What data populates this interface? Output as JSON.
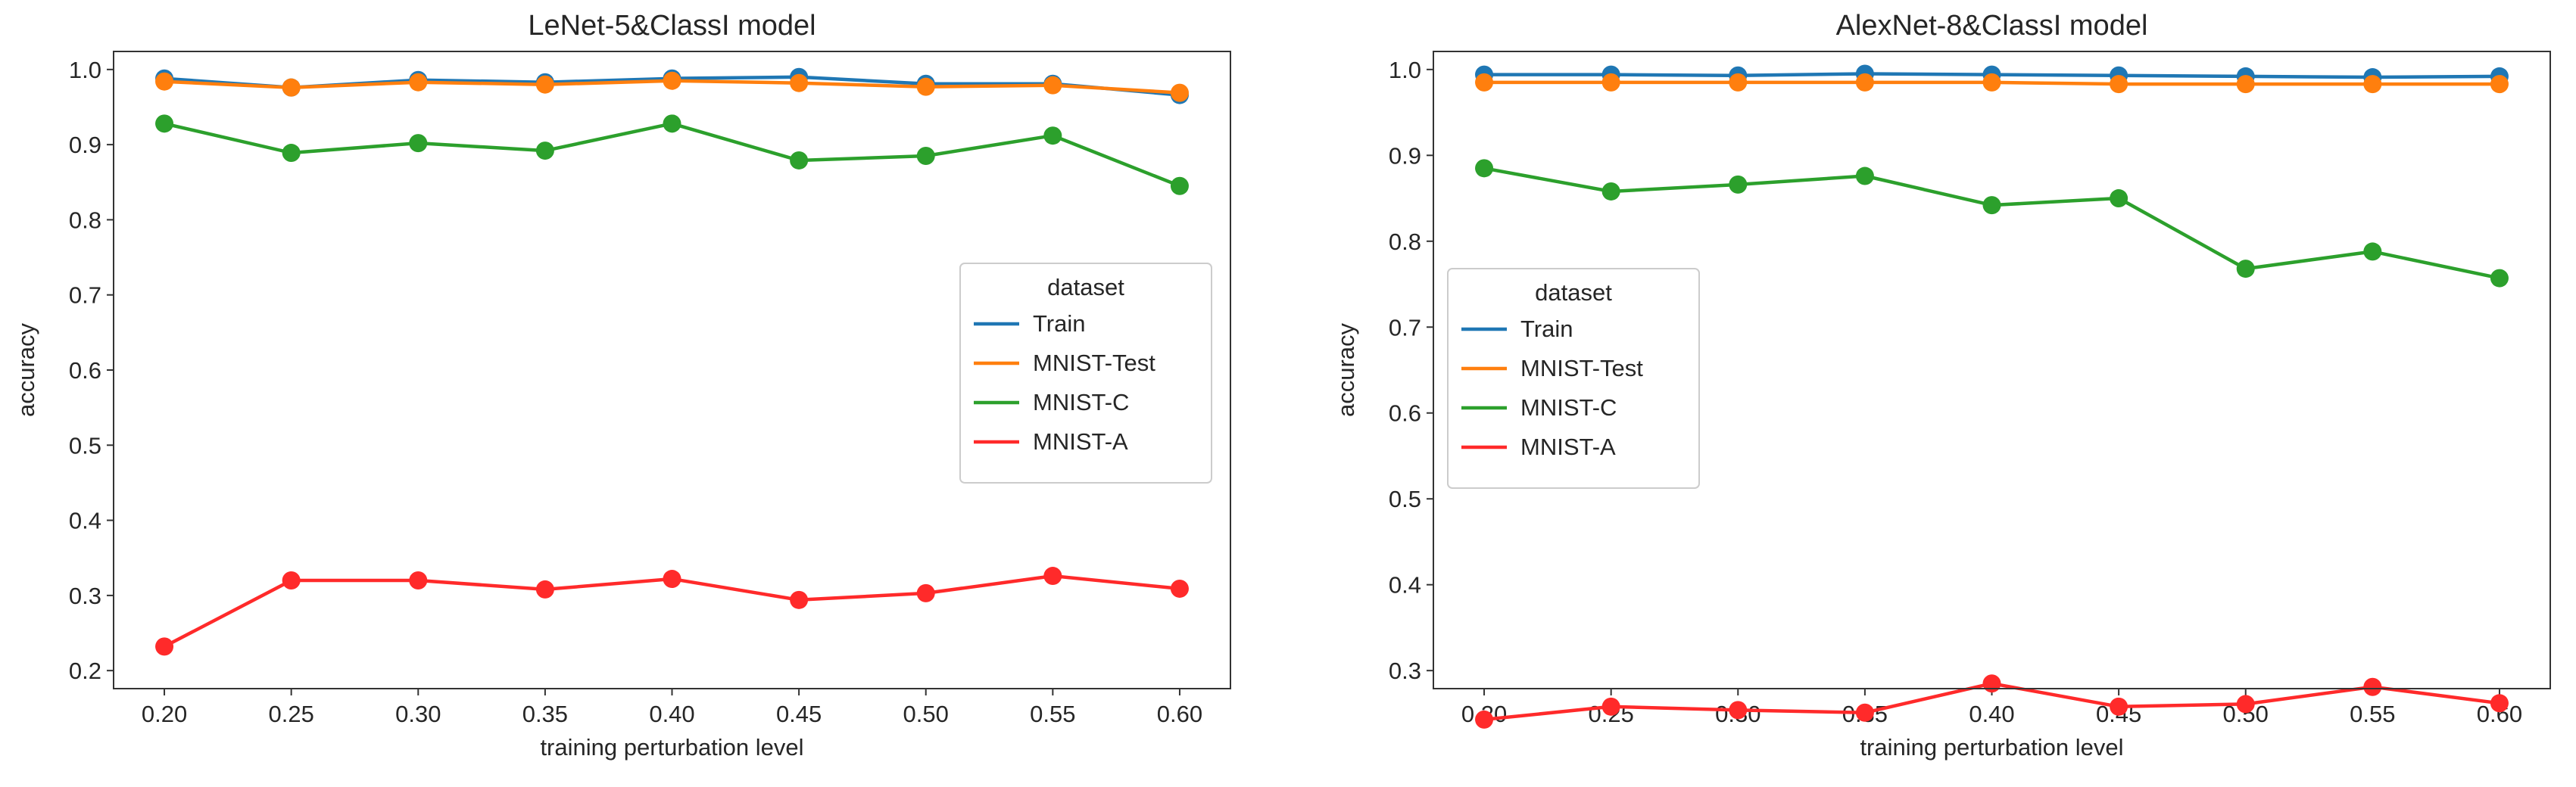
{
  "chart_data": [
    {
      "type": "line",
      "title": "LeNet-5&ClassI model",
      "xlabel": "training perturbation level",
      "ylabel": "accuracy",
      "x": [
        0.2,
        0.25,
        0.3,
        0.35,
        0.4,
        0.45,
        0.5,
        0.55,
        0.6
      ],
      "x_tick_labels": [
        "0.20",
        "0.25",
        "0.30",
        "0.35",
        "0.40",
        "0.45",
        "0.50",
        "0.55",
        "0.60"
      ],
      "ylim": [
        0.2,
        1.0
      ],
      "y_ticks": [
        0.2,
        0.3,
        0.4,
        0.5,
        0.6,
        0.7,
        0.8,
        0.9,
        1.0
      ],
      "y_tick_labels": [
        "0.2",
        "0.3",
        "0.4",
        "0.5",
        "0.6",
        "0.7",
        "0.8",
        "0.9",
        "1.0"
      ],
      "grid": false,
      "legend_title": "dataset",
      "legend_position": "center-right",
      "series": [
        {
          "name": "Train",
          "color": "#1f77b4",
          "values": [
            0.988,
            0.976,
            0.986,
            0.983,
            0.988,
            0.99,
            0.981,
            0.981,
            0.966
          ]
        },
        {
          "name": "MNIST-Test",
          "color": "#ff7f0e",
          "values": [
            0.984,
            0.976,
            0.983,
            0.98,
            0.985,
            0.982,
            0.977,
            0.979,
            0.969
          ]
        },
        {
          "name": "MNIST-C",
          "color": "#2ca02c",
          "values": [
            0.928,
            0.889,
            0.902,
            0.892,
            0.928,
            0.879,
            0.885,
            0.912,
            0.845
          ]
        },
        {
          "name": "MNIST-A",
          "color": "#ff2a2a",
          "values": [
            0.232,
            0.32,
            0.32,
            0.308,
            0.322,
            0.294,
            0.303,
            0.326,
            0.309
          ]
        }
      ]
    },
    {
      "type": "line",
      "title": "AlexNet-8&ClassI model",
      "xlabel": "training perturbation level",
      "ylabel": "accuracy",
      "x": [
        0.2,
        0.25,
        0.3,
        0.35,
        0.4,
        0.45,
        0.5,
        0.55,
        0.6
      ],
      "x_tick_labels": [
        "0.20",
        "0.25",
        "0.30",
        "0.35",
        "0.40",
        "0.45",
        "0.50",
        "0.55",
        "0.60"
      ],
      "ylim": [
        0.3,
        1.0
      ],
      "y_ticks": [
        0.3,
        0.4,
        0.5,
        0.6,
        0.7,
        0.8,
        0.9,
        1.0
      ],
      "y_tick_labels": [
        "0.3",
        "0.4",
        "0.5",
        "0.6",
        "0.7",
        "0.8",
        "0.9",
        "1.0"
      ],
      "grid": false,
      "legend_title": "dataset",
      "legend_position": "center-left",
      "series": [
        {
          "name": "Train",
          "color": "#1f77b4",
          "values": [
            0.994,
            0.994,
            0.993,
            0.995,
            0.994,
            0.993,
            0.992,
            0.991,
            0.992
          ]
        },
        {
          "name": "MNIST-Test",
          "color": "#ff7f0e",
          "values": [
            0.985,
            0.985,
            0.985,
            0.985,
            0.985,
            0.983,
            0.983,
            0.983,
            0.983
          ]
        },
        {
          "name": "MNIST-C",
          "color": "#2ca02c",
          "values": [
            0.885,
            0.858,
            0.866,
            0.876,
            0.842,
            0.85,
            0.768,
            0.788,
            0.757
          ]
        },
        {
          "name": "MNIST-A",
          "color": "#ff2a2a",
          "values": [
            0.243,
            0.258,
            0.254,
            0.251,
            0.285,
            0.258,
            0.261,
            0.281,
            0.262
          ]
        }
      ]
    }
  ]
}
